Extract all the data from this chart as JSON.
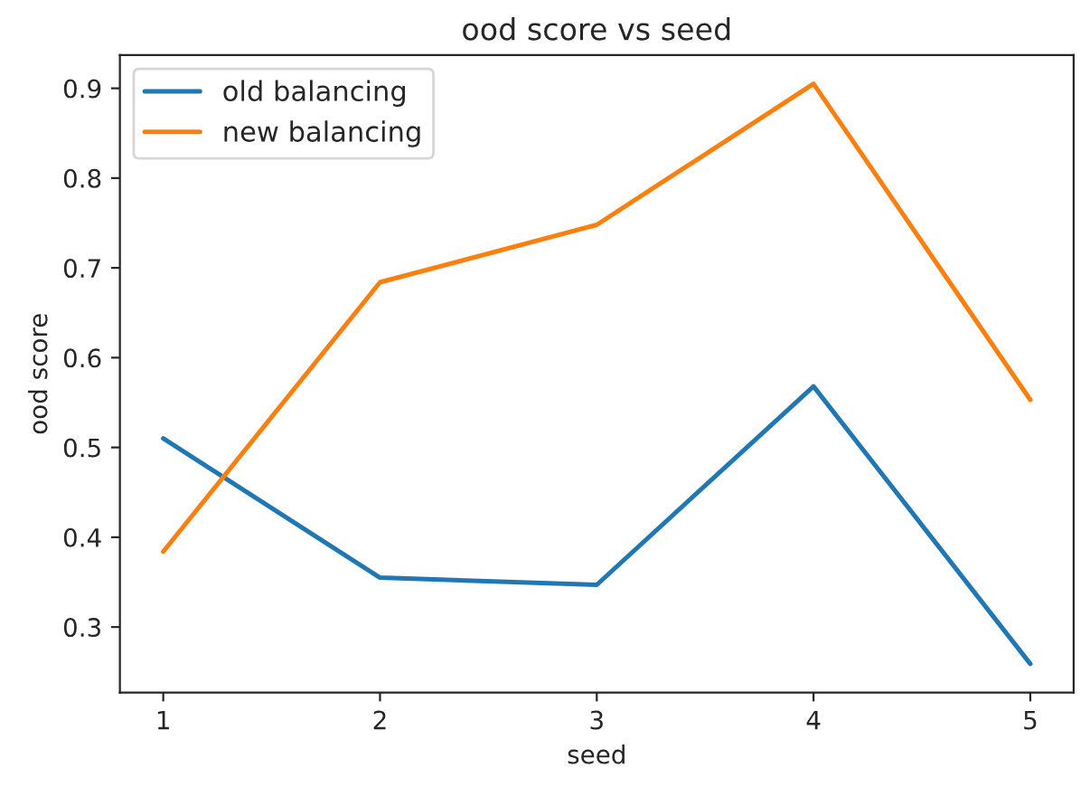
{
  "chart_data": {
    "type": "line",
    "title": "ood score vs seed",
    "xlabel": "seed",
    "ylabel": "ood score",
    "x": [
      1,
      2,
      3,
      4,
      5
    ],
    "series": [
      {
        "name": "old balancing",
        "color": "#1f77b4",
        "values": [
          0.51,
          0.355,
          0.347,
          0.568,
          0.259
        ]
      },
      {
        "name": "new balancing",
        "color": "#ff7f0e",
        "values": [
          0.384,
          0.684,
          0.748,
          0.905,
          0.553
        ]
      }
    ],
    "xlim": [
      0.8,
      5.2
    ],
    "xticks": [
      1,
      2,
      3,
      4,
      5
    ],
    "ylim": [
      0.227,
      0.937
    ],
    "yticks": [
      0.3,
      0.4,
      0.5,
      0.6,
      0.7,
      0.8,
      0.9
    ],
    "grid": false,
    "legend": "top left"
  }
}
